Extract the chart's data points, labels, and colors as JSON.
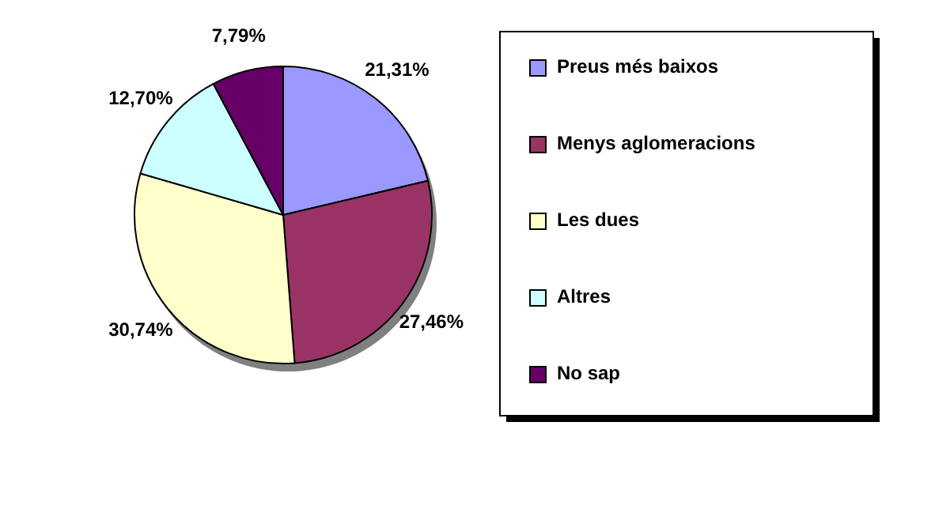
{
  "chart_data": {
    "type": "pie",
    "categories": [
      "Preus més baixos",
      "Menys aglomeracions",
      "Les dues",
      "Altres",
      "No sap"
    ],
    "values": [
      21.31,
      27.46,
      30.74,
      12.7,
      7.79
    ],
    "value_labels": [
      "21,31%",
      "27,46%",
      "30,74%",
      "12,70%",
      "7,79%"
    ],
    "colors": [
      "#9999ff",
      "#993366",
      "#ffffcc",
      "#ccffff",
      "#660066"
    ],
    "legend": "right"
  }
}
